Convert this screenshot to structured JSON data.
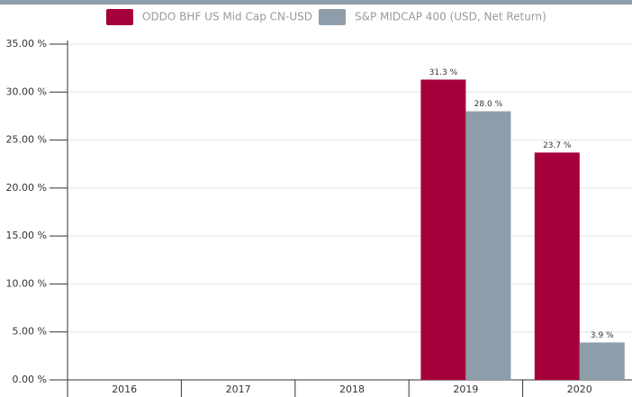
{
  "chart_data": {
    "type": "bar",
    "categories": [
      "2016",
      "2017",
      "2018",
      "2019",
      "2020"
    ],
    "series": [
      {
        "name": "ODDO BHF US Mid Cap CN-USD",
        "color": "#a5003b",
        "values": [
          null,
          null,
          null,
          31.3,
          23.7
        ],
        "value_labels": [
          null,
          null,
          null,
          "31.3 %",
          "23.7 %"
        ]
      },
      {
        "name": "S&P MIDCAP 400 (USD, Net Return)",
        "color": "#8d9eaa",
        "values": [
          null,
          null,
          null,
          28.0,
          3.9
        ],
        "value_labels": [
          null,
          null,
          null,
          "28.0 %",
          "3.9 %"
        ]
      }
    ],
    "ylim": [
      0,
      35
    ],
    "yticks": [
      {
        "value": 0,
        "label": "0.00 %"
      },
      {
        "value": 5,
        "label": "5.00 %"
      },
      {
        "value": 10,
        "label": "10.00 %"
      },
      {
        "value": 15,
        "label": "15.00 %"
      },
      {
        "value": 20,
        "label": "20.00 %"
      },
      {
        "value": 25,
        "label": "25.00 %"
      },
      {
        "value": 30,
        "label": "30.00 %"
      },
      {
        "value": 35,
        "label": "35.00 %"
      }
    ],
    "grid": true
  }
}
